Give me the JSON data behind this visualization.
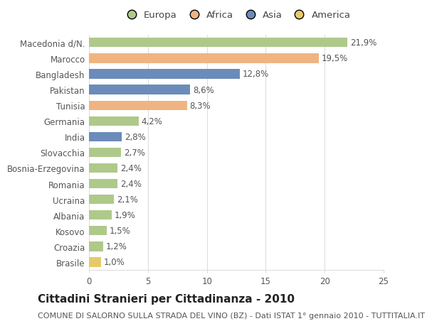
{
  "categories": [
    "Macedonia d/N.",
    "Marocco",
    "Bangladesh",
    "Pakistan",
    "Tunisia",
    "Germania",
    "India",
    "Slovacchia",
    "Bosnia-Erzegovina",
    "Romania",
    "Ucraina",
    "Albania",
    "Kosovo",
    "Croazia",
    "Brasile"
  ],
  "values": [
    21.9,
    19.5,
    12.8,
    8.6,
    8.3,
    4.2,
    2.8,
    2.7,
    2.4,
    2.4,
    2.1,
    1.9,
    1.5,
    1.2,
    1.0
  ],
  "labels": [
    "21,9%",
    "19,5%",
    "12,8%",
    "8,6%",
    "8,3%",
    "4,2%",
    "2,8%",
    "2,7%",
    "2,4%",
    "2,4%",
    "2,1%",
    "1,9%",
    "1,5%",
    "1,2%",
    "1,0%"
  ],
  "colors": [
    "#aec98a",
    "#f0b482",
    "#6b8cba",
    "#6b8cba",
    "#f0b482",
    "#aec98a",
    "#6b8cba",
    "#aec98a",
    "#aec98a",
    "#aec98a",
    "#aec98a",
    "#aec98a",
    "#aec98a",
    "#aec98a",
    "#e8c96a"
  ],
  "legend_labels": [
    "Europa",
    "Africa",
    "Asia",
    "America"
  ],
  "legend_colors": [
    "#aec98a",
    "#f0b482",
    "#6b8cba",
    "#e8c96a"
  ],
  "title": "Cittadini Stranieri per Cittadinanza - 2010",
  "subtitle": "COMUNE DI SALORNO SULLA STRADA DEL VINO (BZ) - Dati ISTAT 1° gennaio 2010 - TUTTITALIA.IT",
  "xlim": [
    0,
    25
  ],
  "xticks": [
    0,
    5,
    10,
    15,
    20,
    25
  ],
  "background_color": "#ffffff",
  "grid_color": "#dddddd",
  "bar_height": 0.6,
  "title_fontsize": 11,
  "subtitle_fontsize": 8,
  "label_fontsize": 8.5,
  "tick_fontsize": 8.5,
  "legend_fontsize": 9.5
}
